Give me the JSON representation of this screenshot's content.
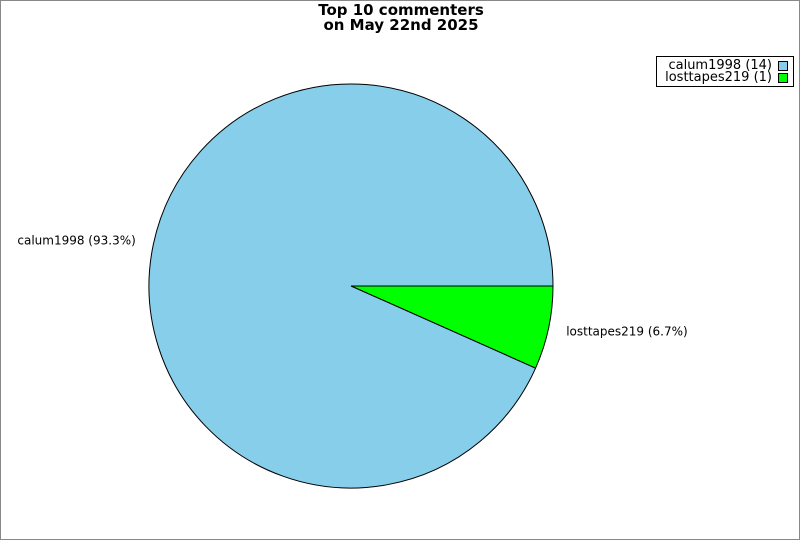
{
  "chart_data": {
    "type": "pie",
    "title_lines": [
      "Top 10 commenters",
      "on May 22nd 2025"
    ],
    "slices": [
      {
        "name": "calum1998",
        "value": 14,
        "percent_label": "calum1998 (93.3%)",
        "legend_label": "calum1998 (14)",
        "color": "#87CEEB"
      },
      {
        "name": "losttapes219",
        "value": 1,
        "percent_label": "losttapes219 (6.7%)",
        "legend_label": "losttapes219 (1)",
        "color": "#00FF00"
      }
    ],
    "legend_position": "top-right"
  }
}
